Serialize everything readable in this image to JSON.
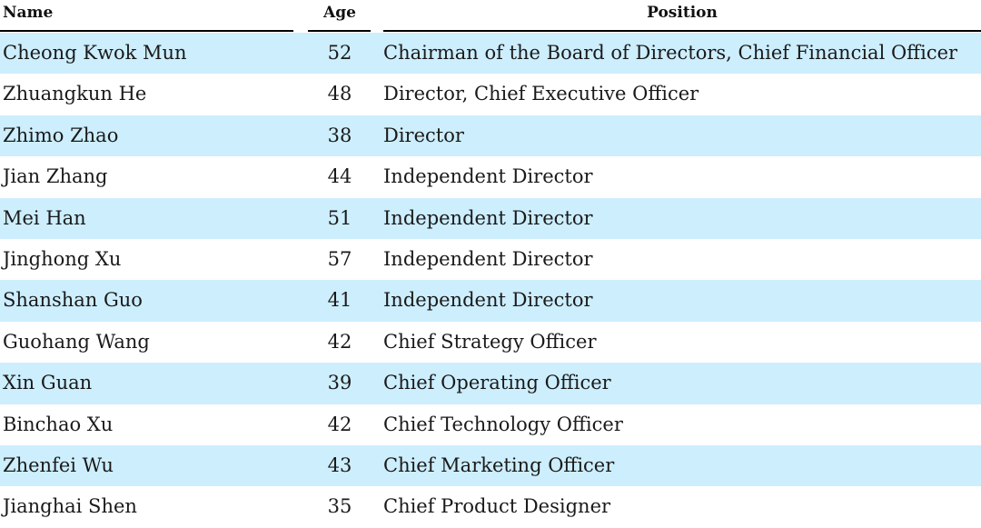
{
  "table": {
    "headers": {
      "name": "Name",
      "age": "Age",
      "position": "Position"
    },
    "rows": [
      {
        "name": "Cheong Kwok Mun",
        "age": "52",
        "position": "Chairman of the Board of Directors, Chief Financial Officer"
      },
      {
        "name": "Zhuangkun He",
        "age": "48",
        "position": "Director, Chief Executive Officer"
      },
      {
        "name": "Zhimo Zhao",
        "age": "38",
        "position": "Director"
      },
      {
        "name": "Jian Zhang",
        "age": "44",
        "position": "Independent Director"
      },
      {
        "name": "Mei Han",
        "age": "51",
        "position": "Independent Director"
      },
      {
        "name": "Jinghong Xu",
        "age": "57",
        "position": "Independent Director"
      },
      {
        "name": "Shanshan Guo",
        "age": "41",
        "position": "Independent Director"
      },
      {
        "name": "Guohang Wang",
        "age": "42",
        "position": "Chief Strategy Officer"
      },
      {
        "name": "Xin Guan",
        "age": "39",
        "position": "Chief Operating Officer"
      },
      {
        "name": "Binchao Xu",
        "age": "42",
        "position": "Chief Technology Officer"
      },
      {
        "name": "Zhenfei Wu",
        "age": "43",
        "position": "Chief Marketing Officer"
      },
      {
        "name": "Jianghai Shen",
        "age": "35",
        "position": "Chief Product Designer"
      }
    ]
  },
  "colors": {
    "stripe": "#cdeefd",
    "rule": "#000000"
  }
}
